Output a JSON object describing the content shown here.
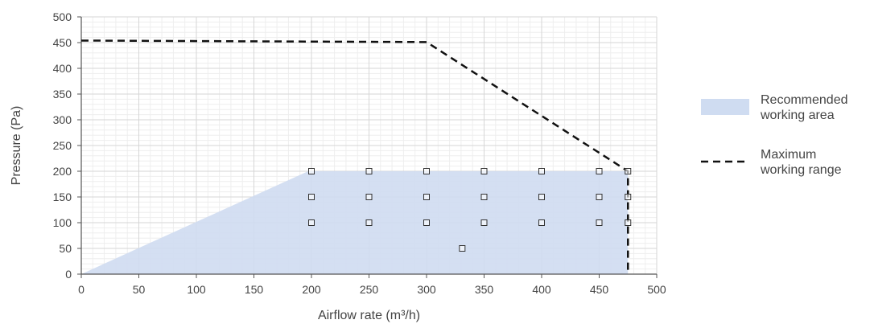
{
  "chart_data": {
    "type": "area",
    "xlabel": "Airflow rate (m³/h)",
    "ylabel": "Pressure (Pa)",
    "xlim": [
      0,
      500
    ],
    "ylim": [
      0,
      500
    ],
    "x_ticks": [
      0,
      50,
      100,
      150,
      200,
      250,
      300,
      350,
      400,
      450,
      500
    ],
    "y_ticks": [
      0,
      50,
      100,
      150,
      200,
      250,
      300,
      350,
      400,
      450,
      500
    ],
    "x_tick_labels": [
      "0",
      "50",
      "100",
      "150",
      "200",
      "250",
      "300",
      "350",
      "400",
      "450",
      "500"
    ],
    "y_tick_labels": [
      "0",
      "50",
      "100",
      "150",
      "200",
      "250",
      "300",
      "350",
      "400",
      "450",
      "500"
    ],
    "grid": true,
    "legend_position": "right",
    "series": [
      {
        "name": "Recommended working area",
        "kind": "area",
        "color": "#cfdcf1",
        "points": [
          [
            0,
            0
          ],
          [
            197,
            200
          ],
          [
            475,
            200
          ],
          [
            475,
            0
          ]
        ]
      },
      {
        "name": "Maximum working range",
        "kind": "dashed-line",
        "color": "#111111",
        "points": [
          [
            0,
            454
          ],
          [
            300,
            451
          ],
          [
            475,
            200
          ],
          [
            475,
            0
          ]
        ]
      }
    ],
    "markers": [
      [
        200,
        200
      ],
      [
        250,
        200
      ],
      [
        300,
        200
      ],
      [
        350,
        200
      ],
      [
        400,
        200
      ],
      [
        450,
        200
      ],
      [
        475,
        200
      ],
      [
        200,
        150
      ],
      [
        250,
        150
      ],
      [
        300,
        150
      ],
      [
        350,
        150
      ],
      [
        400,
        150
      ],
      [
        450,
        150
      ],
      [
        475,
        150
      ],
      [
        200,
        100
      ],
      [
        250,
        100
      ],
      [
        300,
        100
      ],
      [
        350,
        100
      ],
      [
        400,
        100
      ],
      [
        450,
        100
      ],
      [
        475,
        100
      ],
      [
        331,
        50
      ]
    ],
    "legend": [
      {
        "label_lines": [
          "Recommended",
          "working area"
        ],
        "kind": "area",
        "color": "#cfdcf1"
      },
      {
        "label_lines": [
          "Maximum",
          "working range"
        ],
        "kind": "dashed-line",
        "color": "#111111"
      }
    ]
  }
}
